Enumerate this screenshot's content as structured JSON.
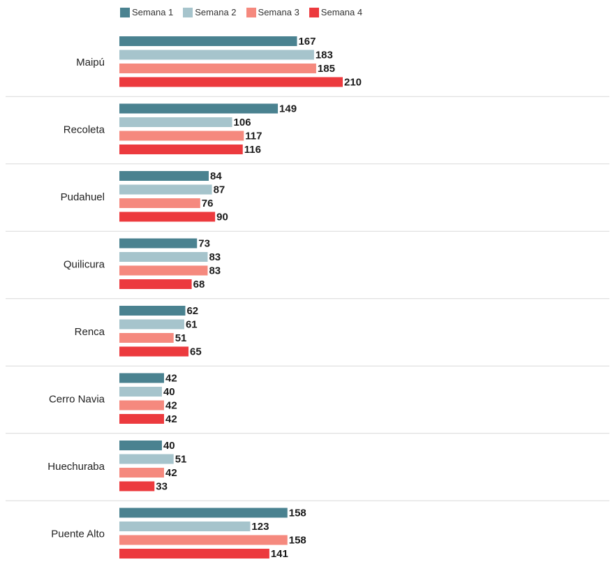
{
  "chart_data": {
    "type": "bar",
    "orientation": "horizontal",
    "categories": [
      "Maipú",
      "Recoleta",
      "Pudahuel",
      "Quilicura",
      "Renca",
      "Cerro Navia",
      "Huechuraba",
      "Puente Alto"
    ],
    "series": [
      {
        "name": "Semana 1",
        "color": "#4a8290",
        "values": [
          167,
          149,
          84,
          73,
          62,
          42,
          40,
          158
        ]
      },
      {
        "name": "Semana 2",
        "color": "#a6c4cc",
        "values": [
          183,
          106,
          87,
          83,
          61,
          40,
          51,
          123
        ]
      },
      {
        "name": "Semana 3",
        "color": "#f5897e",
        "values": [
          185,
          117,
          76,
          83,
          51,
          42,
          42,
          158
        ]
      },
      {
        "name": "Semana 4",
        "color": "#ec3a3e",
        "values": [
          210,
          116,
          90,
          68,
          65,
          42,
          33,
          141
        ]
      }
    ],
    "legend_position": "top",
    "grid": false,
    "xlim": [
      0,
      210
    ]
  }
}
